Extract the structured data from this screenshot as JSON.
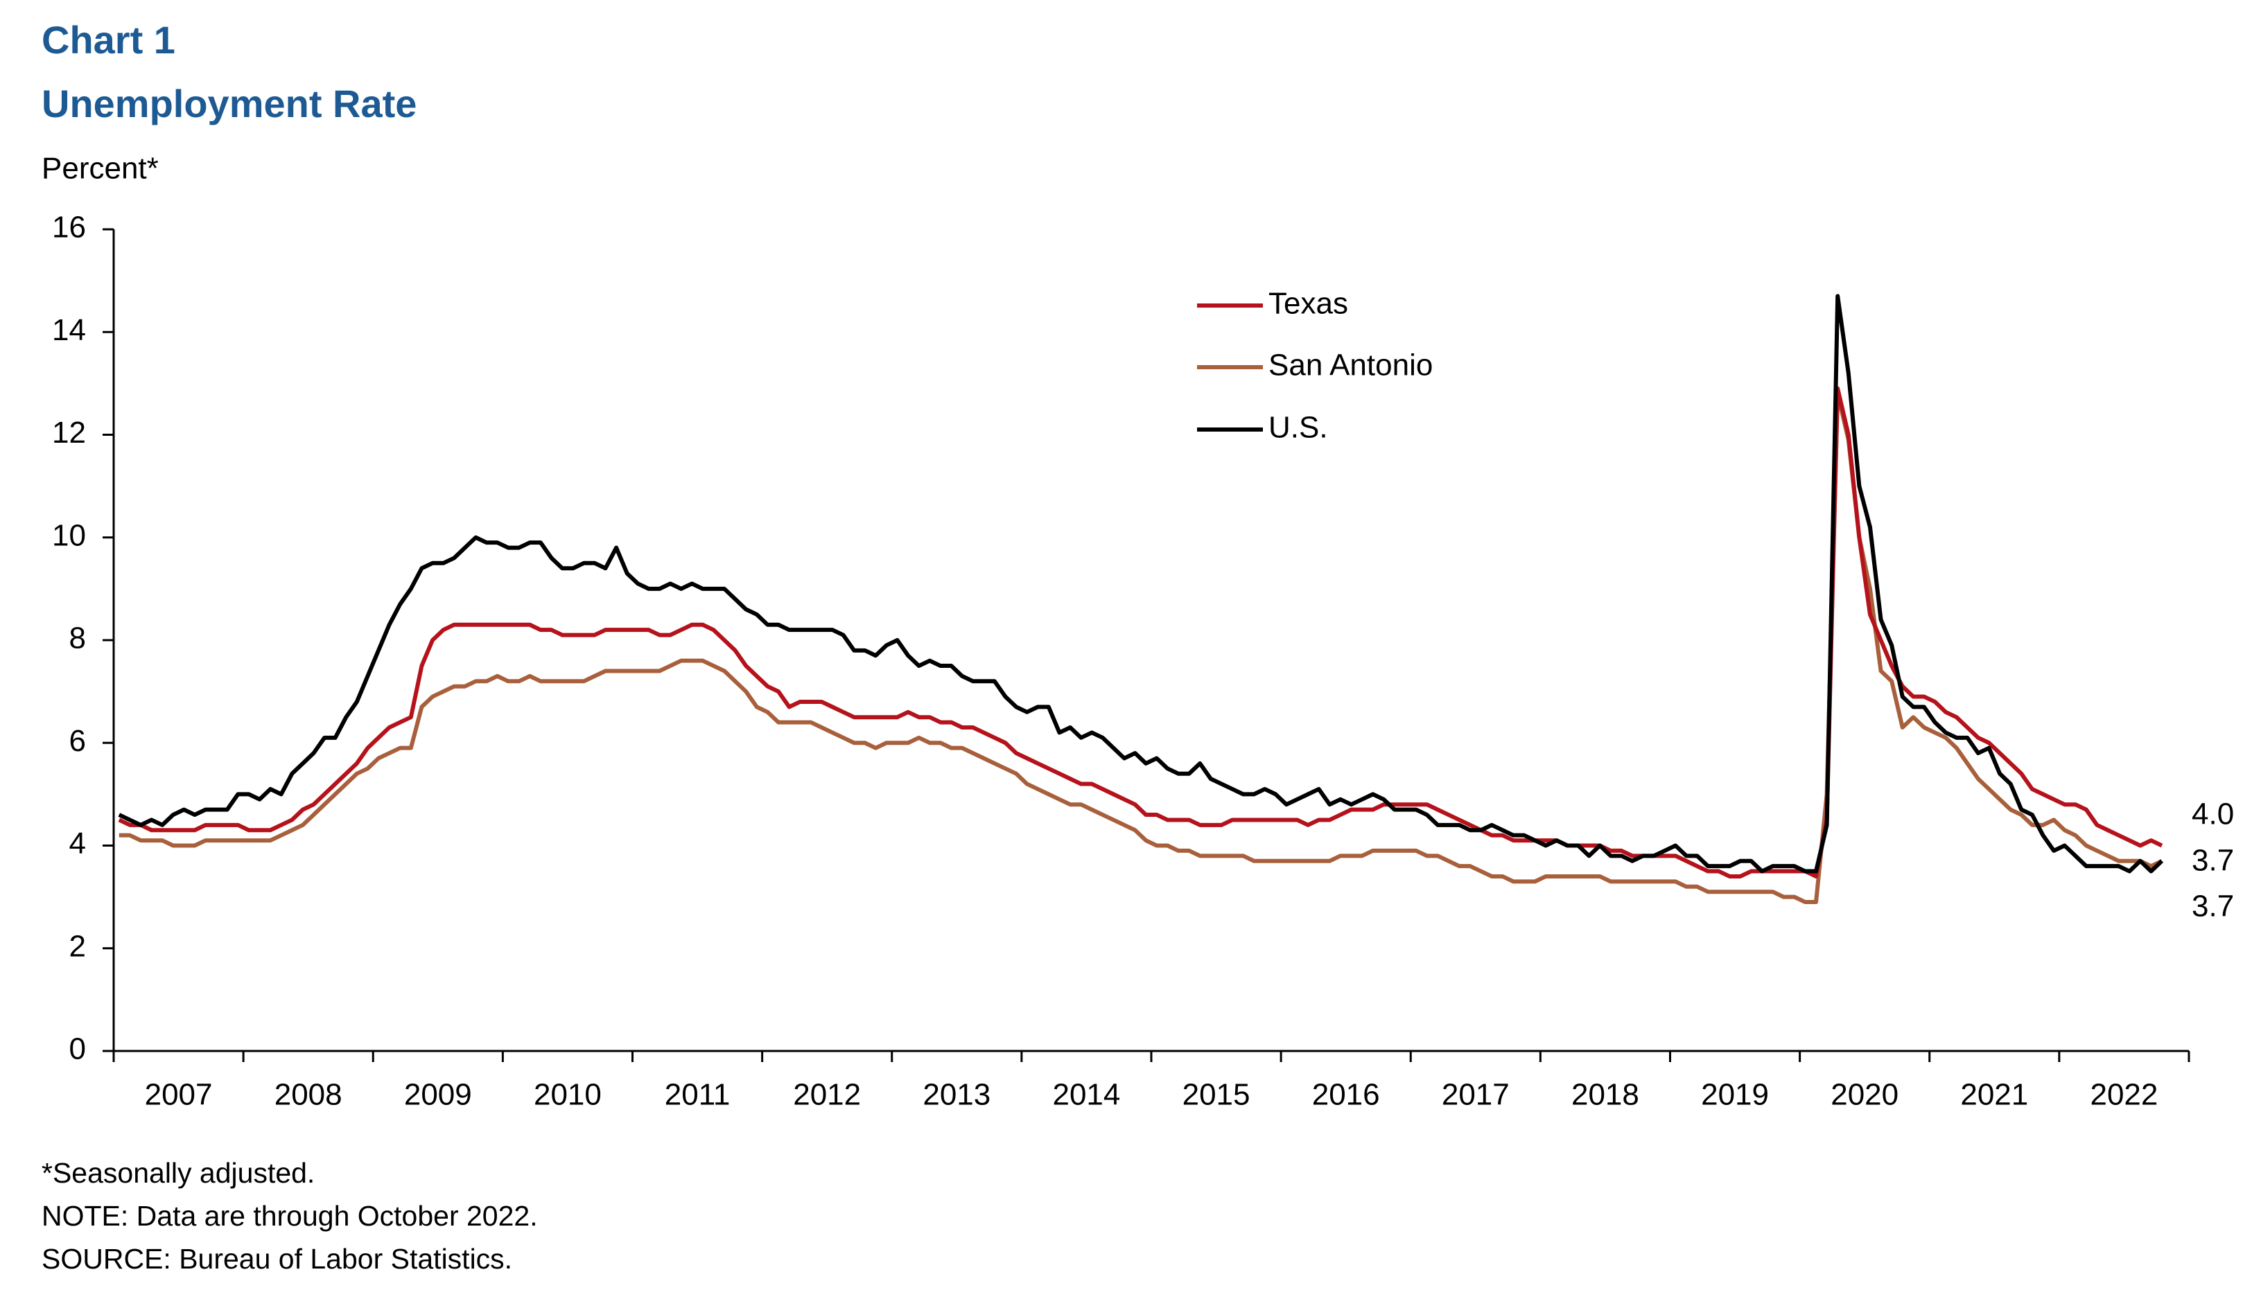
{
  "chart_data": {
    "type": "line",
    "title": "Chart 1",
    "subtitle": "Unemployment Rate",
    "y_label": "Percent*",
    "notes": [
      "*Seasonally adjusted.",
      "NOTE: Data are through October 2022.",
      "SOURCE: Bureau of Labor Statistics."
    ],
    "categories": [
      null,
      null,
      null,
      null,
      null,
      "2007",
      null,
      null,
      null,
      null,
      null,
      null,
      null,
      null,
      null,
      null,
      null,
      "2008",
      null,
      null,
      null,
      null,
      null,
      null,
      null,
      null,
      null,
      null,
      null,
      "2009",
      null,
      null,
      null,
      null,
      null,
      null,
      null,
      null,
      null,
      null,
      null,
      "2010",
      null,
      null,
      null,
      null,
      null,
      null,
      null,
      null,
      null,
      null,
      null,
      "2011",
      null,
      null,
      null,
      null,
      null,
      null,
      null,
      null,
      null,
      null,
      null,
      "2012",
      null,
      null,
      null,
      null,
      null,
      null,
      null,
      null,
      null,
      null,
      null,
      "2013",
      null,
      null,
      null,
      null,
      null,
      null,
      null,
      null,
      null,
      null,
      null,
      "2014",
      null,
      null,
      null,
      null,
      null,
      null,
      null,
      null,
      null,
      null,
      null,
      "2015",
      null,
      null,
      null,
      null,
      null,
      null,
      null,
      null,
      null,
      null,
      null,
      "2016",
      null,
      null,
      null,
      null,
      null,
      null,
      null,
      null,
      null,
      null,
      null,
      "2017",
      null,
      null,
      null,
      null,
      null,
      null,
      null,
      null,
      null,
      null,
      null,
      "2018",
      null,
      null,
      null,
      null,
      null,
      null,
      null,
      null,
      null,
      null,
      null,
      "2019",
      null,
      null,
      null,
      null,
      null,
      null,
      null,
      null,
      null,
      null,
      null,
      "2020",
      null,
      null,
      null,
      null,
      null,
      null,
      null,
      null,
      null,
      null,
      null,
      "2021",
      null,
      null,
      null,
      null,
      null,
      null,
      null,
      null,
      null,
      null,
      null,
      "2022",
      null,
      null,
      null,
      null
    ],
    "ylim": [
      0,
      16
    ],
    "yticks": [
      0,
      2,
      4,
      6,
      8,
      10,
      12,
      14,
      16
    ],
    "legend": "top-center",
    "series": [
      {
        "name": "Texas",
        "color": "#b5121b",
        "last_label": "4.0",
        "values": [
          4.5,
          4.4,
          4.4,
          4.3,
          4.3,
          4.3,
          4.3,
          4.3,
          4.4,
          4.4,
          4.4,
          4.4,
          4.3,
          4.3,
          4.3,
          4.4,
          4.5,
          4.7,
          4.8,
          5.0,
          5.2,
          5.4,
          5.6,
          5.9,
          6.1,
          6.3,
          6.4,
          6.5,
          7.5,
          8.0,
          8.2,
          8.3,
          8.3,
          8.3,
          8.3,
          8.3,
          8.3,
          8.3,
          8.3,
          8.2,
          8.2,
          8.1,
          8.1,
          8.1,
          8.1,
          8.2,
          8.2,
          8.2,
          8.2,
          8.2,
          8.1,
          8.1,
          8.2,
          8.3,
          8.3,
          8.2,
          8.0,
          7.8,
          7.5,
          7.3,
          7.1,
          7.0,
          6.7,
          6.8,
          6.8,
          6.8,
          6.7,
          6.6,
          6.5,
          6.5,
          6.5,
          6.5,
          6.5,
          6.6,
          6.5,
          6.5,
          6.4,
          6.4,
          6.3,
          6.3,
          6.2,
          6.1,
          6.0,
          5.8,
          5.7,
          5.6,
          5.5,
          5.4,
          5.3,
          5.2,
          5.2,
          5.1,
          5.0,
          4.9,
          4.8,
          4.6,
          4.6,
          4.5,
          4.5,
          4.5,
          4.4,
          4.4,
          4.4,
          4.5,
          4.5,
          4.5,
          4.5,
          4.5,
          4.5,
          4.5,
          4.4,
          4.5,
          4.5,
          4.6,
          4.7,
          4.7,
          4.7,
          4.8,
          4.8,
          4.8,
          4.8,
          4.8,
          4.7,
          4.6,
          4.5,
          4.4,
          4.3,
          4.2,
          4.2,
          4.1,
          4.1,
          4.1,
          4.1,
          4.1,
          4.0,
          4.0,
          4.0,
          4.0,
          3.9,
          3.9,
          3.8,
          3.8,
          3.8,
          3.8,
          3.8,
          3.7,
          3.6,
          3.5,
          3.5,
          3.4,
          3.4,
          3.5,
          3.5,
          3.5,
          3.5,
          3.5,
          3.5,
          3.4,
          4.5,
          12.9,
          12.0,
          10.0,
          8.5,
          8.0,
          7.5,
          7.1,
          6.9,
          6.9,
          6.8,
          6.6,
          6.5,
          6.3,
          6.1,
          6.0,
          5.8,
          5.6,
          5.4,
          5.1,
          5.0,
          4.9,
          4.8,
          4.8,
          4.7,
          4.4,
          4.3,
          4.2,
          4.1,
          4.0,
          4.1,
          4.0
        ]
      },
      {
        "name": "San Antonio",
        "color": "#a8603c",
        "last_label": "3.7",
        "values": [
          4.2,
          4.2,
          4.1,
          4.1,
          4.1,
          4.0,
          4.0,
          4.0,
          4.1,
          4.1,
          4.1,
          4.1,
          4.1,
          4.1,
          4.1,
          4.2,
          4.3,
          4.4,
          4.6,
          4.8,
          5.0,
          5.2,
          5.4,
          5.5,
          5.7,
          5.8,
          5.9,
          5.9,
          6.7,
          6.9,
          7.0,
          7.1,
          7.1,
          7.2,
          7.2,
          7.3,
          7.2,
          7.2,
          7.3,
          7.2,
          7.2,
          7.2,
          7.2,
          7.2,
          7.3,
          7.4,
          7.4,
          7.4,
          7.4,
          7.4,
          7.4,
          7.5,
          7.6,
          7.6,
          7.6,
          7.5,
          7.4,
          7.2,
          7.0,
          6.7,
          6.6,
          6.4,
          6.4,
          6.4,
          6.4,
          6.3,
          6.2,
          6.1,
          6.0,
          6.0,
          5.9,
          6.0,
          6.0,
          6.0,
          6.1,
          6.0,
          6.0,
          5.9,
          5.9,
          5.8,
          5.7,
          5.6,
          5.5,
          5.4,
          5.2,
          5.1,
          5.0,
          4.9,
          4.8,
          4.8,
          4.7,
          4.6,
          4.5,
          4.4,
          4.3,
          4.1,
          4.0,
          4.0,
          3.9,
          3.9,
          3.8,
          3.8,
          3.8,
          3.8,
          3.8,
          3.7,
          3.7,
          3.7,
          3.7,
          3.7,
          3.7,
          3.7,
          3.7,
          3.8,
          3.8,
          3.8,
          3.9,
          3.9,
          3.9,
          3.9,
          3.9,
          3.8,
          3.8,
          3.7,
          3.6,
          3.6,
          3.5,
          3.4,
          3.4,
          3.3,
          3.3,
          3.3,
          3.4,
          3.4,
          3.4,
          3.4,
          3.4,
          3.4,
          3.3,
          3.3,
          3.3,
          3.3,
          3.3,
          3.3,
          3.3,
          3.2,
          3.2,
          3.1,
          3.1,
          3.1,
          3.1,
          3.1,
          3.1,
          3.1,
          3.0,
          3.0,
          2.9,
          2.9,
          5.0,
          12.8,
          11.9,
          10.0,
          9.0,
          7.4,
          7.2,
          6.3,
          6.5,
          6.3,
          6.2,
          6.1,
          5.9,
          5.6,
          5.3,
          5.1,
          4.9,
          4.7,
          4.6,
          4.4,
          4.4,
          4.5,
          4.3,
          4.2,
          4.0,
          3.9,
          3.8,
          3.7,
          3.7,
          3.7,
          3.6,
          3.7
        ]
      },
      {
        "name": "U.S.",
        "color": "#000000",
        "last_label": "3.7",
        "values": [
          4.6,
          4.5,
          4.4,
          4.5,
          4.4,
          4.6,
          4.7,
          4.6,
          4.7,
          4.7,
          4.7,
          5.0,
          5.0,
          4.9,
          5.1,
          5.0,
          5.4,
          5.6,
          5.8,
          6.1,
          6.1,
          6.5,
          6.8,
          7.3,
          7.8,
          8.3,
          8.7,
          9.0,
          9.4,
          9.5,
          9.5,
          9.6,
          9.8,
          10.0,
          9.9,
          9.9,
          9.8,
          9.8,
          9.9,
          9.9,
          9.6,
          9.4,
          9.4,
          9.5,
          9.5,
          9.4,
          9.8,
          9.3,
          9.1,
          9.0,
          9.0,
          9.1,
          9.0,
          9.1,
          9.0,
          9.0,
          9.0,
          8.8,
          8.6,
          8.5,
          8.3,
          8.3,
          8.2,
          8.2,
          8.2,
          8.2,
          8.2,
          8.1,
          7.8,
          7.8,
          7.7,
          7.9,
          8.0,
          7.7,
          7.5,
          7.6,
          7.5,
          7.5,
          7.3,
          7.2,
          7.2,
          7.2,
          6.9,
          6.7,
          6.6,
          6.7,
          6.7,
          6.2,
          6.3,
          6.1,
          6.2,
          6.1,
          5.9,
          5.7,
          5.8,
          5.6,
          5.7,
          5.5,
          5.4,
          5.4,
          5.6,
          5.3,
          5.2,
          5.1,
          5.0,
          5.0,
          5.1,
          5.0,
          4.8,
          4.9,
          5.0,
          5.1,
          4.8,
          4.9,
          4.8,
          4.9,
          5.0,
          4.9,
          4.7,
          4.7,
          4.7,
          4.6,
          4.4,
          4.4,
          4.4,
          4.3,
          4.3,
          4.4,
          4.3,
          4.2,
          4.2,
          4.1,
          4.0,
          4.1,
          4.0,
          4.0,
          3.8,
          4.0,
          3.8,
          3.8,
          3.7,
          3.8,
          3.8,
          3.9,
          4.0,
          3.8,
          3.8,
          3.6,
          3.6,
          3.6,
          3.7,
          3.7,
          3.5,
          3.6,
          3.6,
          3.6,
          3.5,
          3.5,
          4.4,
          14.7,
          13.2,
          11.0,
          10.2,
          8.4,
          7.9,
          6.9,
          6.7,
          6.7,
          6.4,
          6.2,
          6.1,
          6.1,
          5.8,
          5.9,
          5.4,
          5.2,
          4.7,
          4.6,
          4.2,
          3.9,
          4.0,
          3.8,
          3.6,
          3.6,
          3.6,
          3.6,
          3.5,
          3.7,
          3.5,
          3.7
        ]
      }
    ]
  }
}
